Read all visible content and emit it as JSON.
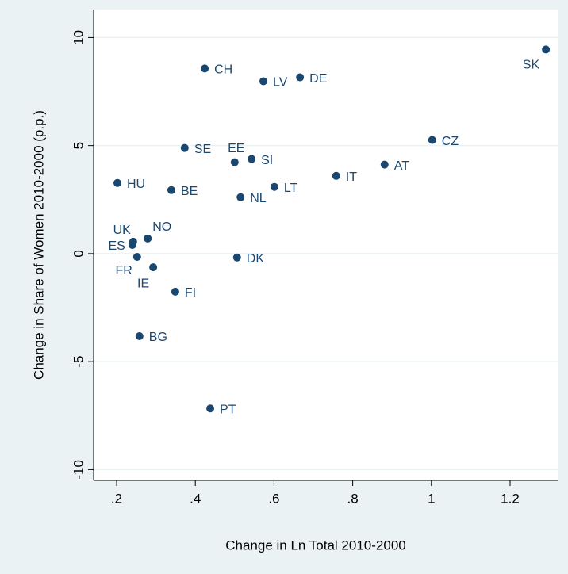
{
  "chart_data": {
    "type": "scatter",
    "x_label": "Change in Ln Total 2010-2000",
    "y_label": "Change in Share of Women 2010-2000 (p.p.)",
    "labels": [
      "SK",
      "CH",
      "LV",
      "DE",
      "CZ",
      "SE",
      "EE",
      "SI",
      "IT",
      "AT",
      "HU",
      "BE",
      "LT",
      "NL",
      "NO",
      "UK",
      "ES",
      "FR",
      "IE",
      "DK",
      "FI",
      "BG",
      "PT"
    ],
    "x": [
      1.291,
      0.424,
      0.573,
      0.666,
      1.002,
      0.373,
      0.5,
      0.543,
      0.758,
      0.881,
      0.202,
      0.339,
      0.601,
      0.515,
      0.279,
      0.242,
      0.24,
      0.252,
      0.293,
      0.506,
      0.349,
      0.258,
      0.438
    ],
    "values": [
      9.45,
      8.57,
      7.98,
      8.16,
      5.26,
      4.89,
      4.23,
      4.38,
      3.6,
      4.12,
      3.27,
      2.94,
      3.09,
      2.61,
      0.7,
      0.55,
      0.4,
      -0.15,
      -0.63,
      -0.18,
      -1.76,
      -3.82,
      -7.17
    ],
    "color": "#1a476f",
    "xlim": [
      0.1415,
      1.323
    ],
    "ylim": [
      -10.5,
      11.3
    ],
    "xticks": [
      {
        "value": 0.2,
        "label": ".2"
      },
      {
        "value": 0.4,
        "label": ".4"
      },
      {
        "value": 0.6,
        "label": ".6"
      },
      {
        "value": 0.8,
        "label": ".8"
      },
      1,
      1.2
    ],
    "yticks": [
      -10,
      -5,
      0,
      5,
      10
    ],
    "grid": true
  }
}
